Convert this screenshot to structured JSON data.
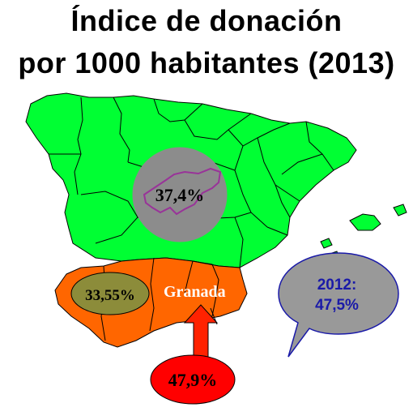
{
  "title": {
    "line1": "Índice  de donación",
    "line2": "por 1000 habitantes (2013)"
  },
  "map": {
    "national_rate": "37,4%",
    "andalucia_rate": "33,55%",
    "granada_label": "Granada",
    "granada_rate": "47,9%",
    "callout": {
      "year_label": "2012:",
      "value": "47,5%"
    }
  },
  "colors": {
    "spain_fill": "#00ff33",
    "andalucia_fill": "#ff6600",
    "madrid_circle": "#8c8c8c",
    "andalucia_oval": "#8c8c3a",
    "granada_oval": "#ff0000",
    "arrow": "#ff2200",
    "callout_fill": "#999999",
    "callout_text": "#1a1aa8",
    "madrid_outline": "#993399"
  },
  "icons": [
    "upward-arrow",
    "speech-bubble"
  ]
}
